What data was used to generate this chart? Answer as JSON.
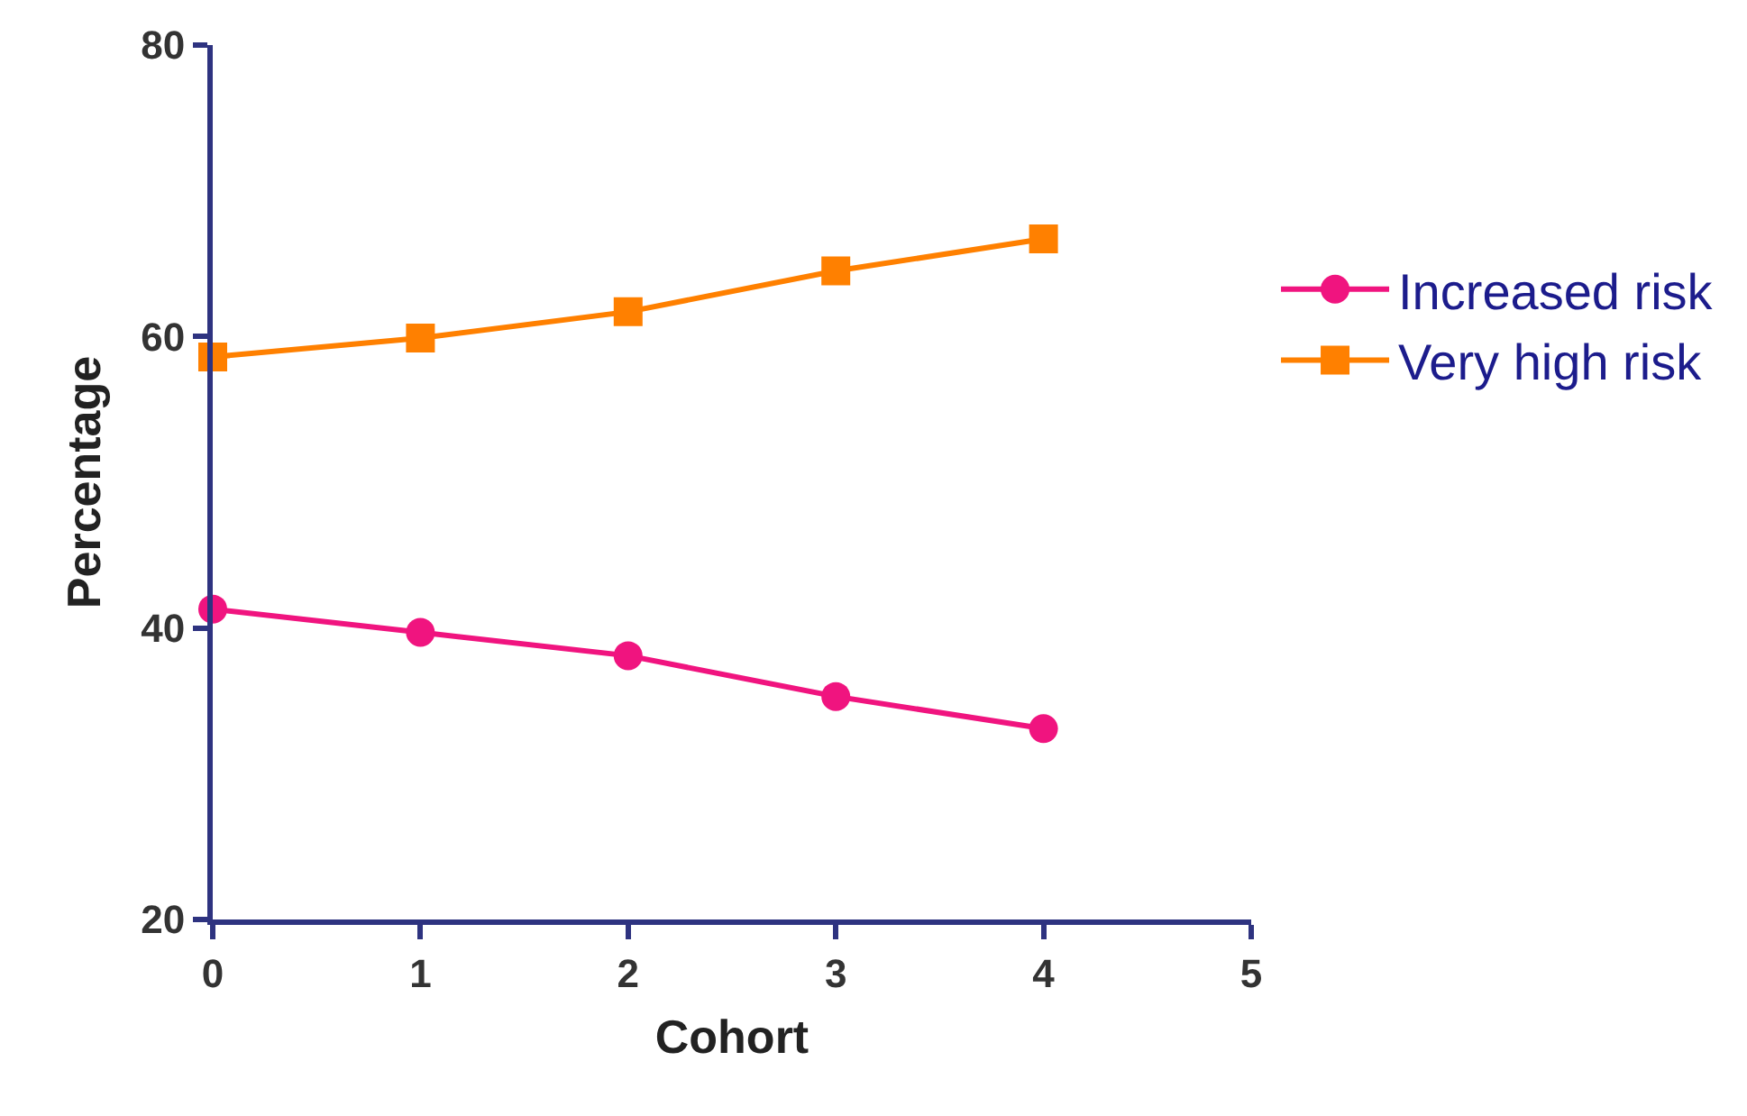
{
  "chart_data": {
    "type": "line",
    "xlabel": "Cohort",
    "ylabel": "Percentage",
    "x": [
      0,
      1,
      2,
      3,
      4
    ],
    "series": [
      {
        "name": "Increased risk",
        "color": "#f0147f",
        "marker": "circle",
        "values": [
          41.3,
          39.7,
          38.1,
          35.3,
          33.1
        ]
      },
      {
        "name": "Very high risk",
        "color": "#ff8000",
        "marker": "square",
        "values": [
          58.6,
          59.9,
          61.7,
          64.5,
          66.7
        ]
      }
    ],
    "xlim": [
      0,
      5
    ],
    "xticks": [
      0,
      1,
      2,
      3,
      4,
      5
    ],
    "ylim": [
      20,
      80
    ],
    "yticks": [
      20,
      40,
      60,
      80
    ],
    "legend": "right",
    "line_style": "solid"
  }
}
